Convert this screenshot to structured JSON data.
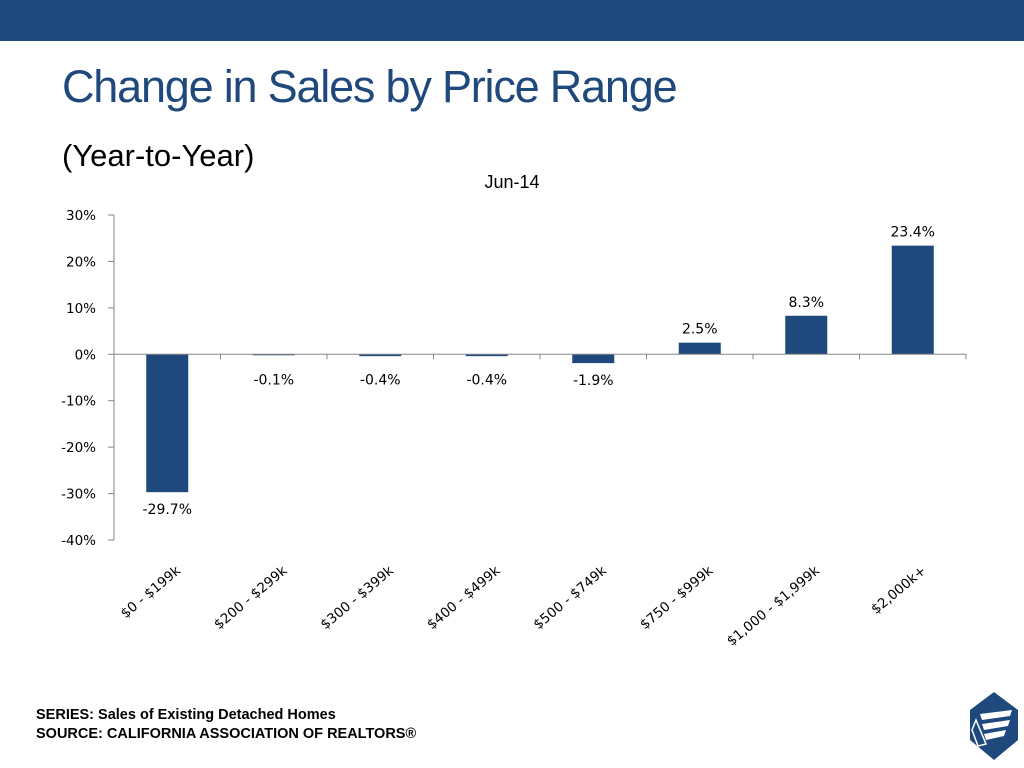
{
  "slide": {
    "title": "Change in Sales by Price Range",
    "subtitle": "(Year-to-Year)",
    "footer": {
      "series": "SERIES: Sales of Existing Detached Homes",
      "source": "SOURCE:  CALIFORNIA ASSOCIATION OF REALTORS®"
    },
    "logo_icon": "car-logo-icon",
    "colors": {
      "header_bar": "#1f497d",
      "title": "#1f497d",
      "bar": "#1f497d"
    }
  },
  "chart_data": {
    "type": "bar",
    "title": "Jun-14",
    "categories": [
      "$0 - $199k",
      "$200 - $299k",
      "$300 - $399k",
      "$400 - $499k",
      "$500 - $749k",
      "$750 - $999k",
      "$1,000 - $1,999k",
      "$2,000k+"
    ],
    "values": [
      -29.7,
      -0.1,
      -0.4,
      -0.4,
      -1.9,
      2.5,
      8.3,
      23.4
    ],
    "data_labels": [
      "-29.7%",
      "-0.1%",
      "-0.4%",
      "-0.4%",
      "-1.9%",
      "2.5%",
      "8.3%",
      "23.4%"
    ],
    "yticks": [
      30,
      20,
      10,
      0,
      -10,
      -20,
      -30,
      -40
    ],
    "ytick_labels": [
      "30%",
      "20%",
      "10%",
      "0%",
      "-10%",
      "-20%",
      "-30%",
      "-40%"
    ],
    "ylim": [
      -40,
      30
    ],
    "grid": false,
    "legend": "none"
  }
}
